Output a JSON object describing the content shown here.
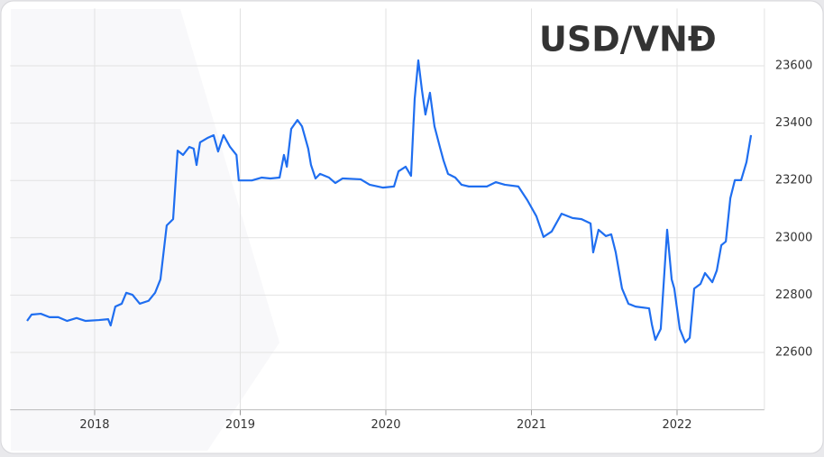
{
  "chart_data": {
    "type": "line",
    "title": "USD/VNĐ",
    "xlim": [
      2017.42,
      2022.6
    ],
    "xticks": [
      2018,
      2019,
      2020,
      2021,
      2022
    ],
    "ylim": [
      22400,
      23800
    ],
    "yticks": [
      22600,
      22800,
      23000,
      23200,
      23400,
      23600
    ],
    "grid": true,
    "series": [
      {
        "color": "#1f6ef0",
        "x": [
          2017.536,
          2017.567,
          2017.63,
          2017.69,
          2017.75,
          2017.81,
          2017.876,
          2017.938,
          2018.03,
          2018.093,
          2018.11,
          2018.142,
          2018.186,
          2018.217,
          2018.26,
          2018.31,
          2018.37,
          2018.415,
          2018.452,
          2018.495,
          2018.539,
          2018.57,
          2018.607,
          2018.65,
          2018.68,
          2018.7,
          2018.724,
          2018.774,
          2018.817,
          2018.848,
          2018.885,
          2018.93,
          2018.974,
          2018.99,
          2019.08,
          2019.146,
          2019.207,
          2019.27,
          2019.3,
          2019.32,
          2019.35,
          2019.393,
          2019.424,
          2019.467,
          2019.486,
          2019.517,
          2019.548,
          2019.61,
          2019.653,
          2019.703,
          2019.827,
          2019.889,
          2019.981,
          2020.056,
          2020.087,
          2020.136,
          2020.173,
          2020.198,
          2020.223,
          2020.248,
          2020.272,
          2020.303,
          2020.334,
          2020.371,
          2020.396,
          2020.427,
          2020.477,
          2020.52,
          2020.57,
          2020.694,
          2020.755,
          2020.817,
          2020.91,
          2020.972,
          2021.034,
          2021.083,
          2021.139,
          2021.207,
          2021.282,
          2021.344,
          2021.406,
          2021.424,
          2021.461,
          2021.511,
          2021.548,
          2021.579,
          2021.622,
          2021.666,
          2021.715,
          2021.808,
          2021.827,
          2021.851,
          2021.888,
          2021.932,
          2021.963,
          2021.981,
          2022.019,
          2022.056,
          2022.087,
          2022.118,
          2022.161,
          2022.192,
          2022.242,
          2022.273,
          2022.304,
          2022.335,
          2022.366,
          2022.397,
          2022.44,
          2022.477,
          2022.508
        ],
        "values": [
          22710,
          22732,
          22735,
          22723,
          22723,
          22710,
          22720,
          22710,
          22713,
          22716,
          22694,
          22760,
          22770,
          22808,
          22801,
          22770,
          22780,
          22808,
          22855,
          23043,
          23065,
          23304,
          23289,
          23317,
          23311,
          23254,
          23333,
          23348,
          23358,
          23301,
          23358,
          23317,
          23289,
          23200,
          23200,
          23210,
          23207,
          23210,
          23289,
          23248,
          23380,
          23411,
          23389,
          23311,
          23254,
          23207,
          23223,
          23210,
          23191,
          23207,
          23204,
          23185,
          23175,
          23179,
          23232,
          23248,
          23216,
          23484,
          23619,
          23515,
          23430,
          23506,
          23389,
          23317,
          23270,
          23223,
          23210,
          23185,
          23179,
          23179,
          23194,
          23185,
          23179,
          23131,
          23075,
          23003,
          23022,
          23084,
          23069,
          23065,
          23050,
          22949,
          23028,
          23006,
          23012,
          22949,
          22823,
          22770,
          22760,
          22754,
          22698,
          22644,
          22682,
          23028,
          22855,
          22823,
          22682,
          22635,
          22651,
          22823,
          22839,
          22877,
          22845,
          22886,
          22974,
          22987,
          23138,
          23201,
          23201,
          23264,
          23358
        ]
      }
    ]
  }
}
